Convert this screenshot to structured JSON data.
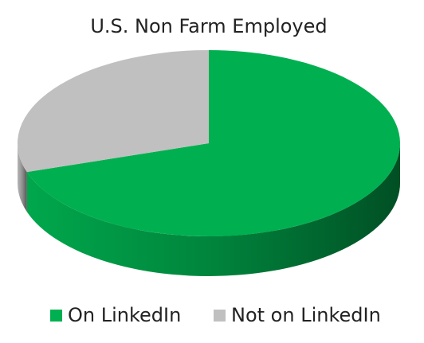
{
  "chart_data": {
    "type": "pie",
    "title": "U.S. Non Farm Employed",
    "categories": [
      "On LinkedIn",
      "Not on LinkedIn"
    ],
    "values": [
      70,
      30
    ],
    "colors": [
      "#00b050",
      "#c0c0c0"
    ],
    "legend": "bottom"
  }
}
